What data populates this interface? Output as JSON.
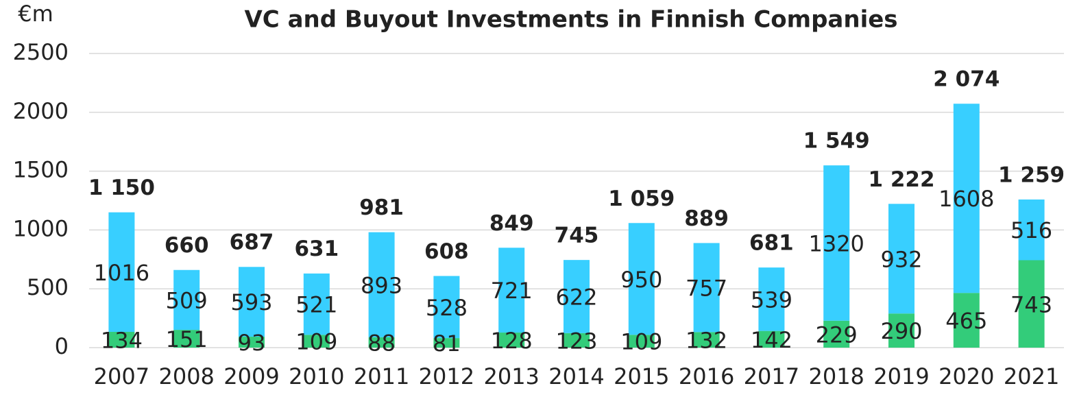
{
  "chart_data": {
    "type": "stacked_bar",
    "title": "VC and Buyout Investments in Finnish Companies",
    "y_label": "€m",
    "categories": [
      "2007",
      "2008",
      "2009",
      "2010",
      "2011",
      "2012",
      "2013",
      "2014",
      "2015",
      "2016",
      "2017",
      "2018",
      "2019",
      "2020",
      "2021"
    ],
    "series": [
      {
        "color": "#33cc7a",
        "values": [
          134,
          151,
          93,
          109,
          88,
          81,
          128,
          123,
          109,
          132,
          142,
          229,
          290,
          465,
          743
        ]
      },
      {
        "color": "#38cfff",
        "values": [
          1016,
          509,
          593,
          521,
          893,
          528,
          721,
          622,
          950,
          757,
          539,
          1320,
          932,
          1608,
          516
        ]
      }
    ],
    "totals": {
      "values": [
        1150,
        660,
        687,
        631,
        981,
        608,
        849,
        745,
        1059,
        889,
        681,
        1549,
        1222,
        2074,
        1259
      ],
      "value_labels": [
        "1 150",
        "660",
        "687",
        "631",
        "981",
        "608",
        "849",
        "745",
        "1 059",
        "889",
        "681",
        "1 549",
        "1 222",
        "2 074",
        "1 259"
      ]
    },
    "ylim": [
      0,
      2500
    ],
    "yticks": [
      0,
      500,
      1000,
      1500,
      2000,
      2500
    ],
    "grid": true
  }
}
